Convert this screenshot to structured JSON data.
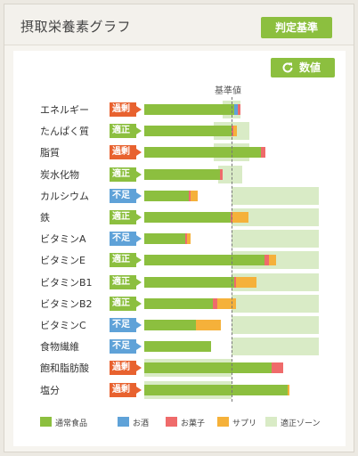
{
  "page": {
    "title": "摂取栄養素グラフ",
    "judge_button": "判定基準"
  },
  "toolbar": {
    "value_button": "数値"
  },
  "chart": {
    "reference_label": "基準値"
  },
  "colors": {
    "normal": "#8cbf3f",
    "alcohol": "#5fa2d8",
    "sweets": "#ef6b6b",
    "supplement": "#f5b13a",
    "zone": "#d9ebc6",
    "over": "#e8622f",
    "ok": "#8cbf3f",
    "low": "#5fa2d8"
  },
  "legend": [
    {
      "label": "通常食品",
      "key": "normal"
    },
    {
      "label": "お酒",
      "key": "alcohol"
    },
    {
      "label": "お菓子",
      "key": "sweets"
    },
    {
      "label": "サプリ",
      "key": "supplement"
    },
    {
      "label": "適正ゾーン",
      "key": "zone"
    }
  ],
  "chart_data": {
    "type": "bar",
    "stacked": true,
    "orientation": "horizontal",
    "reference_line": 100,
    "unit": "percent of reference",
    "rows": [
      {
        "name": "エネルギー",
        "status": "過剰",
        "status_type": "over",
        "zone": [
          90,
          110
        ],
        "normal": 103,
        "alcohol": 4,
        "sweets": 3,
        "supplement": 0
      },
      {
        "name": "たんぱく質",
        "status": "適正",
        "status_type": "ok",
        "zone": [
          80,
          120
        ],
        "normal": 100,
        "alcohol": 0,
        "sweets": 2,
        "supplement": 4
      },
      {
        "name": "脂質",
        "status": "過剰",
        "status_type": "over",
        "zone": [
          80,
          120
        ],
        "normal": 134,
        "alcohol": 0,
        "sweets": 5,
        "supplement": 0
      },
      {
        "name": "炭水化物",
        "status": "適正",
        "status_type": "ok",
        "zone": [
          85,
          112
        ],
        "normal": 87,
        "alcohol": 0,
        "sweets": 3,
        "supplement": 0
      },
      {
        "name": "カルシウム",
        "status": "不足",
        "status_type": "low",
        "zone": [
          100,
          200
        ],
        "normal": 51,
        "alcohol": 0,
        "sweets": 2,
        "supplement": 8
      },
      {
        "name": "鉄",
        "status": "適正",
        "status_type": "ok",
        "zone": [
          100,
          200
        ],
        "normal": 99,
        "alcohol": 0,
        "sweets": 2,
        "supplement": 18
      },
      {
        "name": "ビタミンA",
        "status": "不足",
        "status_type": "low",
        "zone": [
          100,
          200
        ],
        "normal": 47,
        "alcohol": 0,
        "sweets": 2,
        "supplement": 4
      },
      {
        "name": "ビタミンE",
        "status": "適正",
        "status_type": "ok",
        "zone": [
          100,
          200
        ],
        "normal": 138,
        "alcohol": 0,
        "sweets": 5,
        "supplement": 8
      },
      {
        "name": "ビタミンB1",
        "status": "適正",
        "status_type": "ok",
        "zone": [
          100,
          200
        ],
        "normal": 103,
        "alcohol": 0,
        "sweets": 2,
        "supplement": 24
      },
      {
        "name": "ビタミンB2",
        "status": "適正",
        "status_type": "ok",
        "zone": [
          100,
          200
        ],
        "normal": 79,
        "alcohol": 0,
        "sweets": 5,
        "supplement": 21
      },
      {
        "name": "ビタミンC",
        "status": "不足",
        "status_type": "low",
        "zone": [
          100,
          200
        ],
        "normal": 59,
        "alcohol": 0,
        "sweets": 0,
        "supplement": 29
      },
      {
        "name": "食物繊維",
        "status": "不足",
        "status_type": "low",
        "zone": [
          100,
          200
        ],
        "normal": 77,
        "alcohol": 0,
        "sweets": 0,
        "supplement": 0
      },
      {
        "name": "飽和脂肪酸",
        "status": "過剰",
        "status_type": "over",
        "zone": [
          0,
          100
        ],
        "normal": 146,
        "alcohol": 0,
        "sweets": 13,
        "supplement": 0
      },
      {
        "name": "塩分",
        "status": "過剰",
        "status_type": "over",
        "zone": [
          0,
          100
        ],
        "normal": 164,
        "alcohol": 0,
        "sweets": 0,
        "supplement": 2
      }
    ]
  }
}
